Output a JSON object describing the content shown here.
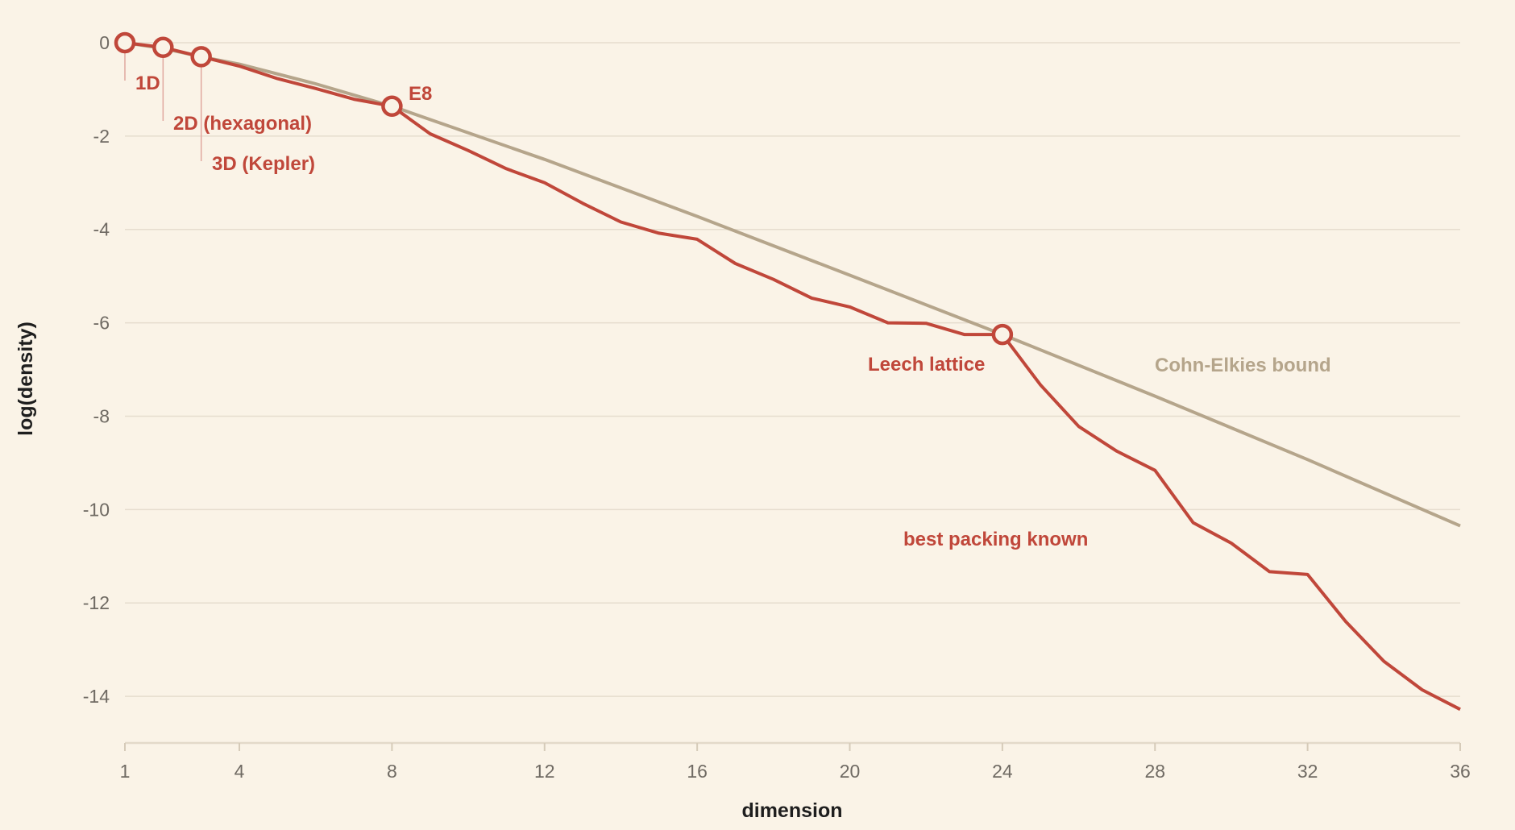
{
  "chart_data": {
    "type": "line",
    "xlabel": "dimension",
    "ylabel": "log(density)",
    "xlim": [
      1,
      36
    ],
    "ylim": [
      -15,
      0
    ],
    "x_ticks": [
      1,
      4,
      8,
      12,
      16,
      20,
      24,
      28,
      32,
      36
    ],
    "y_ticks": [
      0,
      -2,
      -4,
      -6,
      -8,
      -10,
      -12,
      -14
    ],
    "grid": "horizontal",
    "colors": {
      "best": "#c0473a",
      "bound": "#b5a58b",
      "leader": "#e0a89f"
    },
    "series": [
      {
        "key": "bound",
        "name": "Cohn-Elkies bound",
        "x": [
          1,
          2,
          3,
          4,
          6,
          8,
          12,
          16,
          20,
          24,
          28,
          32,
          36
        ],
        "y": [
          0.0,
          -0.12,
          -0.3,
          -0.46,
          -0.88,
          -1.36,
          -2.5,
          -3.72,
          -4.98,
          -6.25,
          -7.57,
          -8.93,
          -10.35
        ]
      },
      {
        "key": "best",
        "name": "best packing known",
        "x": [
          1,
          2,
          3,
          4,
          5,
          6,
          7,
          8,
          9,
          10,
          11,
          12,
          13,
          14,
          15,
          16,
          17,
          18,
          19,
          20,
          21,
          22,
          23,
          24,
          25,
          26,
          27,
          28,
          29,
          30,
          31,
          32,
          33,
          34,
          35,
          36
        ],
        "y": [
          0.0,
          -0.1,
          -0.3,
          -0.5,
          -0.77,
          -0.98,
          -1.21,
          -1.36,
          -1.95,
          -2.31,
          -2.7,
          -3.0,
          -3.44,
          -3.84,
          -4.08,
          -4.21,
          -4.73,
          -5.07,
          -5.47,
          -5.66,
          -6.0,
          -6.01,
          -6.25,
          -6.25,
          -7.33,
          -8.22,
          -8.75,
          -9.16,
          -10.28,
          -10.72,
          -11.33,
          -11.39,
          -12.4,
          -13.25,
          -13.86,
          -14.28
        ]
      }
    ],
    "highlights": [
      {
        "label": "1D",
        "x": 1,
        "y": 0.0,
        "leader": true
      },
      {
        "label": "2D (hexagonal)",
        "x": 2,
        "y": -0.1,
        "leader": true
      },
      {
        "label": "3D (Kepler)",
        "x": 3,
        "y": -0.3,
        "leader": true
      },
      {
        "label": "E8",
        "x": 8,
        "y": -1.36,
        "leader": false
      },
      {
        "label": "Leech lattice",
        "x": 24,
        "y": -6.25,
        "leader": false
      }
    ],
    "series_labels": [
      {
        "series": "bound",
        "text": "Cohn-Elkies bound"
      },
      {
        "series": "best",
        "text": "best packing known"
      }
    ]
  }
}
